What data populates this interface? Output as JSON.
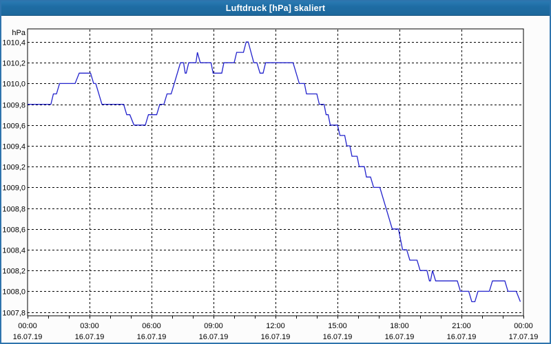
{
  "window": {
    "title": "Luftdruck [hPa] skaliert"
  },
  "colors": {
    "titlebar_bg": "#1e6ca3",
    "titlebar_text": "#ffffff",
    "window_border": "#2e74ad",
    "content_bg": "#fcfcfc",
    "plot_bg": "#ffffff",
    "frame_color": "#000000",
    "grid_color": "#000000",
    "line_color": "#2222cc",
    "label_color": "#000000"
  },
  "chart_data": {
    "type": "line",
    "title": "Luftdruck [hPa] skaliert",
    "ylabel": "hPa",
    "xlabel": "",
    "ylim": [
      1007.8,
      1010.4
    ],
    "xlim_hours": [
      0,
      24
    ],
    "grid": "dashed",
    "legend": "none",
    "y_ticks": [
      {
        "value": 1010.4,
        "label": "1010,4"
      },
      {
        "value": 1010.2,
        "label": "1010,2"
      },
      {
        "value": 1010.0,
        "label": "1010,0"
      },
      {
        "value": 1009.8,
        "label": "1009,8"
      },
      {
        "value": 1009.6,
        "label": "1009,6"
      },
      {
        "value": 1009.4,
        "label": "1009,4"
      },
      {
        "value": 1009.2,
        "label": "1009,2"
      },
      {
        "value": 1009.0,
        "label": "1009,0"
      },
      {
        "value": 1008.8,
        "label": "1008,8"
      },
      {
        "value": 1008.6,
        "label": "1008,6"
      },
      {
        "value": 1008.4,
        "label": "1008,4"
      },
      {
        "value": 1008.2,
        "label": "1008,2"
      },
      {
        "value": 1008.0,
        "label": "1008,0"
      },
      {
        "value": 1007.8,
        "label": "1007,8"
      }
    ],
    "x_ticks": [
      {
        "hour": 0,
        "time": "00:00",
        "date": "16.07.19"
      },
      {
        "hour": 3,
        "time": "03:00",
        "date": "16.07.19"
      },
      {
        "hour": 6,
        "time": "06:00",
        "date": "16.07.19"
      },
      {
        "hour": 9,
        "time": "09:00",
        "date": "16.07.19"
      },
      {
        "hour": 12,
        "time": "12:00",
        "date": "16.07.19"
      },
      {
        "hour": 15,
        "time": "15:00",
        "date": "16.07.19"
      },
      {
        "hour": 18,
        "time": "18:00",
        "date": "16.07.19"
      },
      {
        "hour": 21,
        "time": "21:00",
        "date": "16.07.19"
      },
      {
        "hour": 24,
        "time": "00:00",
        "date": "17.07.19"
      }
    ],
    "minor_x_tick_every_hours": 1,
    "series": [
      {
        "name": "Luftdruck",
        "unit": "hPa",
        "points": [
          [
            0.0,
            1009.8
          ],
          [
            1.13,
            1009.8
          ],
          [
            1.25,
            1009.9
          ],
          [
            1.4,
            1009.9
          ],
          [
            1.55,
            1010.0
          ],
          [
            2.3,
            1010.0
          ],
          [
            2.5,
            1010.1
          ],
          [
            3.05,
            1010.1
          ],
          [
            3.2,
            1010.0
          ],
          [
            3.3,
            1010.0
          ],
          [
            3.6,
            1009.8
          ],
          [
            4.65,
            1009.8
          ],
          [
            4.8,
            1009.7
          ],
          [
            4.95,
            1009.7
          ],
          [
            5.15,
            1009.6
          ],
          [
            5.7,
            1009.6
          ],
          [
            5.85,
            1009.7
          ],
          [
            6.25,
            1009.7
          ],
          [
            6.4,
            1009.8
          ],
          [
            6.6,
            1009.8
          ],
          [
            6.75,
            1009.9
          ],
          [
            6.95,
            1009.9
          ],
          [
            7.4,
            1010.2
          ],
          [
            7.55,
            1010.2
          ],
          [
            7.63,
            1010.1
          ],
          [
            7.68,
            1010.1
          ],
          [
            7.8,
            1010.2
          ],
          [
            8.15,
            1010.2
          ],
          [
            8.22,
            1010.3
          ],
          [
            8.36,
            1010.2
          ],
          [
            8.88,
            1010.2
          ],
          [
            8.98,
            1010.1
          ],
          [
            9.4,
            1010.1
          ],
          [
            9.5,
            1010.2
          ],
          [
            10.0,
            1010.2
          ],
          [
            10.12,
            1010.3
          ],
          [
            10.45,
            1010.3
          ],
          [
            10.58,
            1010.4
          ],
          [
            10.68,
            1010.4
          ],
          [
            10.95,
            1010.2
          ],
          [
            11.1,
            1010.2
          ],
          [
            11.25,
            1010.1
          ],
          [
            11.4,
            1010.1
          ],
          [
            11.52,
            1010.2
          ],
          [
            12.85,
            1010.2
          ],
          [
            13.15,
            1010.0
          ],
          [
            13.4,
            1010.0
          ],
          [
            13.5,
            1009.9
          ],
          [
            14.0,
            1009.9
          ],
          [
            14.12,
            1009.8
          ],
          [
            14.35,
            1009.8
          ],
          [
            14.45,
            1009.7
          ],
          [
            14.55,
            1009.7
          ],
          [
            14.65,
            1009.6
          ],
          [
            15.0,
            1009.6
          ],
          [
            15.12,
            1009.5
          ],
          [
            15.35,
            1009.5
          ],
          [
            15.45,
            1009.4
          ],
          [
            15.6,
            1009.4
          ],
          [
            15.7,
            1009.3
          ],
          [
            15.95,
            1009.3
          ],
          [
            16.05,
            1009.2
          ],
          [
            16.3,
            1009.2
          ],
          [
            16.4,
            1009.1
          ],
          [
            16.6,
            1009.1
          ],
          [
            16.75,
            1009.0
          ],
          [
            17.05,
            1009.0
          ],
          [
            17.65,
            1008.6
          ],
          [
            17.95,
            1008.6
          ],
          [
            18.15,
            1008.4
          ],
          [
            18.35,
            1008.4
          ],
          [
            18.5,
            1008.3
          ],
          [
            18.85,
            1008.3
          ],
          [
            19.0,
            1008.2
          ],
          [
            19.33,
            1008.2
          ],
          [
            19.45,
            1008.1
          ],
          [
            19.5,
            1008.1
          ],
          [
            19.6,
            1008.2
          ],
          [
            19.75,
            1008.1
          ],
          [
            20.8,
            1008.1
          ],
          [
            20.95,
            1008.0
          ],
          [
            21.35,
            1008.0
          ],
          [
            21.5,
            1007.9
          ],
          [
            21.65,
            1007.9
          ],
          [
            21.8,
            1008.0
          ],
          [
            22.35,
            1008.0
          ],
          [
            22.5,
            1008.1
          ],
          [
            23.1,
            1008.1
          ],
          [
            23.25,
            1008.0
          ],
          [
            23.65,
            1008.0
          ],
          [
            23.85,
            1007.9
          ]
        ]
      }
    ]
  }
}
